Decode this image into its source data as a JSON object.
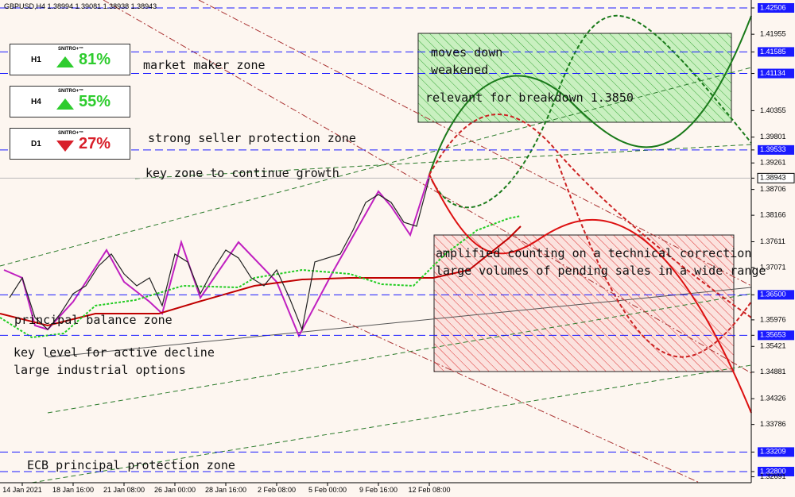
{
  "chart_data": {
    "type": "line",
    "title": "GBPUSD,H4  1.38994 1.39081 1.38938 1.38943",
    "categories": [
      null,
      "14 Jan 2021",
      null,
      null,
      null,
      "18 Jan 16:00",
      null,
      null,
      null,
      "21 Jan 08:00",
      null,
      null,
      null,
      "26 Jan 00:00",
      null,
      null,
      null,
      "28 Jan 16:00",
      null,
      null,
      null,
      "2 Feb 08:00",
      null,
      null,
      null,
      "5 Feb 00:00",
      null,
      null,
      null,
      "9 Feb 16:00",
      null,
      null,
      null,
      "12 Feb 08:00"
    ],
    "series": [
      {
        "name": "GBPUSD",
        "color": "#222222",
        "values": [
          1.3644,
          1.36855,
          1.36024,
          1.35775,
          1.36107,
          1.36523,
          1.36689,
          1.37105,
          1.37354,
          1.36938,
          1.36689,
          1.36855,
          1.36274,
          1.37354,
          1.37188,
          1.36523,
          1.37022,
          1.37437,
          1.37271,
          1.36855,
          1.36689,
          1.37022,
          1.3644,
          1.35775,
          1.37188,
          1.37271,
          1.37354,
          1.37852,
          1.38434,
          1.386,
          1.38434,
          1.38019,
          1.37936,
          1.38943
        ]
      }
    ],
    "ylim": [
      1.32567,
      1.42672
    ],
    "yticks": [
      {
        "value": 1.42506,
        "label": "1.42506",
        "level": true
      },
      1.41955,
      {
        "value": 1.41585,
        "label": "1.41585",
        "level": true
      },
      {
        "value": 1.41134,
        "label": "1.41134",
        "level": true
      },
      1.40355,
      1.39801,
      {
        "value": 1.39533,
        "label": "1.39533",
        "level": true
      },
      1.39261,
      {
        "value": 1.38943,
        "label": "1.38943",
        "current": true
      },
      {
        "value": 1.38706,
        "label": "1.38706"
      },
      1.38166,
      1.37611,
      1.37071,
      {
        "value": 1.365,
        "label": "1.36500",
        "level": true
      },
      1.35976,
      {
        "value": 1.35653,
        "label": "1.35653",
        "level": true
      },
      1.35421,
      1.34881,
      1.34326,
      1.33786,
      {
        "value": 1.33209,
        "label": "1.33209",
        "level": true
      },
      {
        "value": 1.328,
        "label": "1.32800",
        "level": true
      },
      1.32691
    ],
    "level_color": "#1a1aff",
    "annotations": [
      "market maker zone",
      "strong seller protection zone",
      "key zone to continue growth",
      "moves down",
      "weakened",
      "relevant for breakdown 1.3850",
      "amplified counting on a technical correction",
      "large volumes of pending sales in a wide range",
      "principal balance zone",
      "key level for active decline",
      "large industrial options",
      "ECB principal protection zone"
    ]
  },
  "widgets": [
    {
      "brand": "SNITRO+™",
      "timeframe": "H1",
      "value": "81%",
      "direction": "up"
    },
    {
      "brand": "SNITRO+™",
      "timeframe": "H4",
      "value": "55%",
      "direction": "up"
    },
    {
      "brand": "SNITRO+™",
      "timeframe": "D1",
      "value": "27%",
      "direction": "down"
    }
  ]
}
